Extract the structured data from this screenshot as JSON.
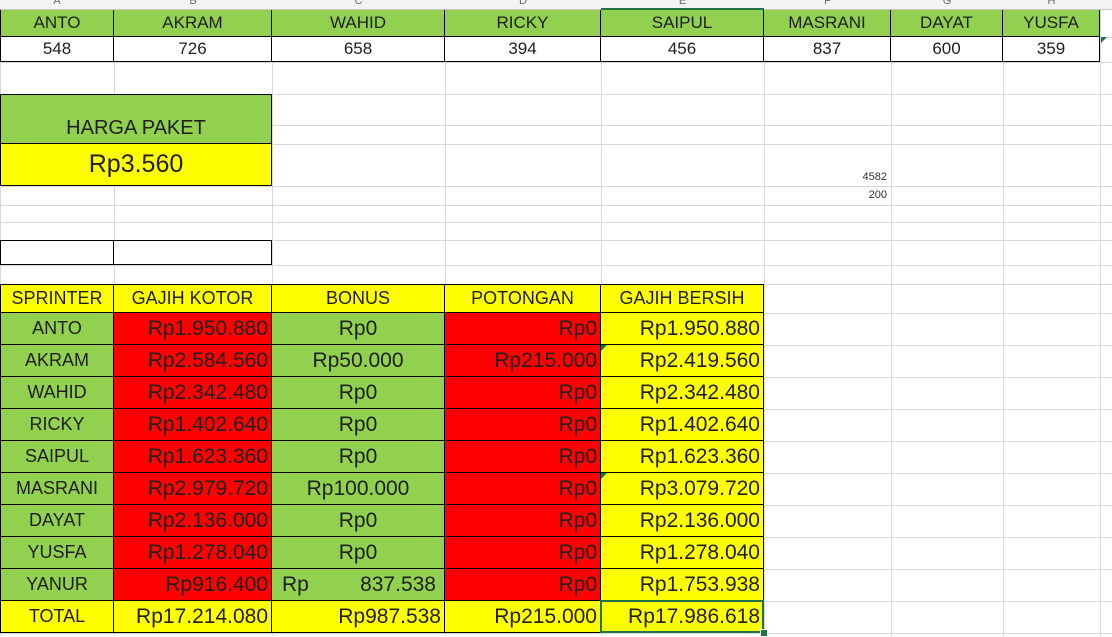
{
  "columns": [
    "A",
    "B",
    "C",
    "D",
    "E",
    "F",
    "G",
    "H"
  ],
  "top_table": {
    "names": [
      "ANTO",
      "AKRAM",
      "WAHID",
      "RICKY",
      "SAIPUL",
      "MASRANI",
      "DAYAT",
      "YUSFA"
    ],
    "values": [
      "548",
      "726",
      "658",
      "394",
      "456",
      "837",
      "600",
      "359"
    ]
  },
  "harga_paket": {
    "label": "HARGA PAKET",
    "value": "Rp3.560"
  },
  "side_numbers": [
    "4582",
    "200"
  ],
  "main_table": {
    "headers": [
      "SPRINTER",
      "GAJIH KOTOR",
      "BONUS",
      "POTONGAN",
      "GAJIH BERSIH"
    ],
    "rows": [
      [
        "ANTO",
        "Rp1.950.880",
        "Rp0",
        "Rp0",
        "Rp1.950.880"
      ],
      [
        "AKRAM",
        "Rp2.584.560",
        "Rp50.000",
        "Rp215.000",
        "Rp2.419.560"
      ],
      [
        "WAHID",
        "Rp2.342.480",
        "Rp0",
        "Rp0",
        "Rp2.342.480"
      ],
      [
        "RICKY",
        "Rp1.402.640",
        "Rp0",
        "Rp0",
        "Rp1.402.640"
      ],
      [
        "SAIPUL",
        "Rp1.623.360",
        "Rp0",
        "Rp0",
        "Rp1.623.360"
      ],
      [
        "MASRANI",
        "Rp2.979.720",
        "Rp100.000",
        "Rp0",
        "Rp3.079.720"
      ],
      [
        "DAYAT",
        "Rp2.136.000",
        "Rp0",
        "Rp0",
        "Rp2.136.000"
      ],
      [
        "YUSFA",
        "Rp1.278.040",
        "Rp0",
        "Rp0",
        "Rp1.278.040"
      ],
      [
        "YANUR",
        "Rp916.400",
        "Rp 837.538",
        "Rp0",
        "Rp1.753.938"
      ]
    ],
    "yanur_bonus_parts": [
      "Rp",
      "837.538"
    ],
    "total": [
      "TOTAL",
      "Rp17.214.080",
      "Rp987.538",
      "Rp215.000",
      "Rp17.986.618"
    ]
  },
  "colors": {
    "green": "#92d050",
    "yellow": "#ffff00",
    "red": "#ff0000",
    "selection": "#217346"
  }
}
